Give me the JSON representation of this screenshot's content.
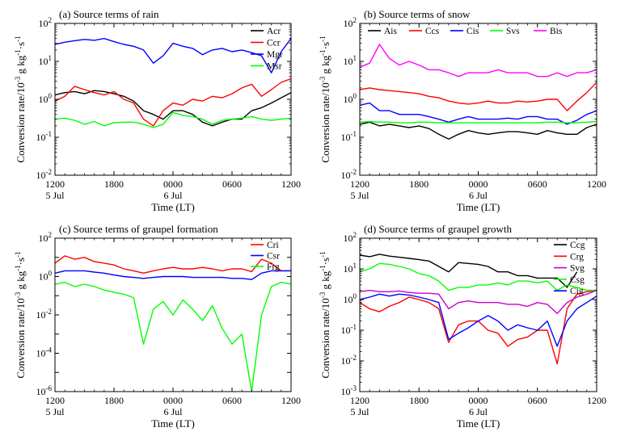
{
  "figure": {
    "ylabel_main": "Conversion rate/10",
    "ylabel_exp": "-3",
    "ylabel_unit": " g kg",
    "ylabel_unit_exp": "-1",
    "ylabel_sep": "·s",
    "ylabel_sep_exp": "-1",
    "xlabel": "Time (LT)"
  },
  "chart_data": [
    {
      "type": "line",
      "title": "(a)  Source terms of rain",
      "xlabel": "Time (LT)",
      "ylabel": "Conversion rate/10^-3 g kg^-1·s^-1",
      "yscale": "log",
      "ylim_exp": [
        -2,
        2
      ],
      "ytick_exps": [
        -2,
        -1,
        0,
        1,
        2
      ],
      "xlim_hours": [
        0,
        24
      ],
      "xticks": [
        {
          "h": 0,
          "label": "1200",
          "sub": "5 Jul"
        },
        {
          "h": 6,
          "label": "1800",
          "sub": ""
        },
        {
          "h": 12,
          "label": "0000",
          "sub": "6 Jul"
        },
        {
          "h": 18,
          "label": "0600",
          "sub": ""
        },
        {
          "h": 24,
          "label": "1200",
          "sub": ""
        }
      ],
      "legend_position": "top-right",
      "series": [
        {
          "name": "Acr",
          "color": "#000000",
          "x": [
            0,
            1,
            2,
            3,
            4,
            5,
            6,
            7,
            8,
            9,
            10,
            11,
            12,
            13,
            14,
            15,
            16,
            17,
            18,
            19,
            20,
            21,
            22,
            23,
            24
          ],
          "y": [
            1.3,
            1.5,
            1.6,
            1.4,
            1.7,
            1.6,
            1.4,
            1.2,
            0.9,
            0.5,
            0.4,
            0.3,
            0.5,
            0.5,
            0.4,
            0.25,
            0.2,
            0.25,
            0.3,
            0.3,
            0.5,
            0.6,
            0.8,
            1.1,
            1.5
          ]
        },
        {
          "name": "Ccr",
          "color": "#ff0000",
          "x": [
            0,
            1,
            2,
            3,
            4,
            5,
            6,
            7,
            8,
            9,
            10,
            11,
            12,
            13,
            14,
            15,
            16,
            17,
            18,
            19,
            20,
            21,
            22,
            23,
            24
          ],
          "y": [
            0.9,
            1.2,
            2.2,
            1.8,
            1.5,
            1.3,
            1.6,
            1.0,
            0.8,
            0.3,
            0.2,
            0.5,
            0.8,
            0.7,
            1.0,
            0.9,
            1.2,
            1.1,
            1.4,
            2.0,
            2.5,
            1.2,
            1.8,
            2.8,
            3.5
          ]
        },
        {
          "name": "Mgr",
          "color": "#0000ff",
          "x": [
            0,
            1,
            2,
            3,
            4,
            5,
            6,
            7,
            8,
            9,
            10,
            11,
            12,
            13,
            14,
            15,
            16,
            17,
            18,
            19,
            20,
            21,
            22,
            23,
            24
          ],
          "y": [
            28,
            32,
            35,
            38,
            36,
            40,
            33,
            28,
            25,
            20,
            9,
            14,
            30,
            25,
            22,
            15,
            20,
            22,
            18,
            20,
            17,
            14,
            5,
            18,
            40
          ]
        },
        {
          "name": "Msr",
          "color": "#00ff00",
          "x": [
            0,
            1,
            2,
            3,
            4,
            5,
            6,
            7,
            8,
            9,
            10,
            11,
            12,
            13,
            14,
            15,
            16,
            17,
            18,
            19,
            20,
            21,
            22,
            23,
            24
          ],
          "y": [
            0.3,
            0.32,
            0.28,
            0.22,
            0.26,
            0.2,
            0.24,
            0.25,
            0.25,
            0.22,
            0.18,
            0.22,
            0.45,
            0.38,
            0.35,
            0.3,
            0.22,
            0.28,
            0.3,
            0.32,
            0.35,
            0.3,
            0.28,
            0.3,
            0.32
          ]
        }
      ]
    },
    {
      "type": "line",
      "title": "(b)  Source terms of snow",
      "xlabel": "Time (LT)",
      "ylabel": "Conversion rate/10^-3 g kg^-1·s^-1",
      "yscale": "log",
      "ylim_exp": [
        -2,
        2
      ],
      "ytick_exps": [
        -2,
        -1,
        0,
        1,
        2
      ],
      "xlim_hours": [
        0,
        24
      ],
      "xticks": [
        {
          "h": 0,
          "label": "1200",
          "sub": "5 Jul"
        },
        {
          "h": 6,
          "label": "1800",
          "sub": ""
        },
        {
          "h": 12,
          "label": "0000",
          "sub": "6 Jul"
        },
        {
          "h": 18,
          "label": "0600",
          "sub": ""
        },
        {
          "h": 24,
          "label": "1200",
          "sub": ""
        }
      ],
      "legend_position": "top",
      "series": [
        {
          "name": "Ais",
          "color": "#000000",
          "x": [
            0,
            1,
            2,
            3,
            4,
            5,
            6,
            7,
            8,
            9,
            10,
            11,
            12,
            13,
            14,
            15,
            16,
            17,
            18,
            19,
            20,
            21,
            22,
            23,
            24
          ],
          "y": [
            0.22,
            0.25,
            0.2,
            0.22,
            0.2,
            0.18,
            0.2,
            0.17,
            0.12,
            0.09,
            0.12,
            0.15,
            0.13,
            0.12,
            0.13,
            0.14,
            0.14,
            0.13,
            0.12,
            0.15,
            0.13,
            0.12,
            0.12,
            0.18,
            0.22
          ]
        },
        {
          "name": "Ccs",
          "color": "#ff0000",
          "x": [
            0,
            1,
            2,
            3,
            4,
            5,
            6,
            7,
            8,
            9,
            10,
            11,
            12,
            13,
            14,
            15,
            16,
            17,
            18,
            19,
            20,
            21,
            22,
            23,
            24
          ],
          "y": [
            1.8,
            2.0,
            1.8,
            1.7,
            1.6,
            1.5,
            1.4,
            1.2,
            1.1,
            0.9,
            0.8,
            0.75,
            0.8,
            0.9,
            0.8,
            0.8,
            0.9,
            0.85,
            0.9,
            1.0,
            1.0,
            0.5,
            0.9,
            1.5,
            2.8
          ]
        },
        {
          "name": "Cis",
          "color": "#0000ff",
          "x": [
            0,
            1,
            2,
            3,
            4,
            5,
            6,
            7,
            8,
            9,
            10,
            11,
            12,
            13,
            14,
            15,
            16,
            17,
            18,
            19,
            20,
            21,
            22,
            23,
            24
          ],
          "y": [
            0.7,
            0.8,
            0.5,
            0.5,
            0.4,
            0.4,
            0.4,
            0.35,
            0.3,
            0.25,
            0.3,
            0.35,
            0.3,
            0.3,
            0.3,
            0.32,
            0.3,
            0.35,
            0.35,
            0.3,
            0.3,
            0.22,
            0.28,
            0.4,
            0.5
          ]
        },
        {
          "name": "Svs",
          "color": "#00ff00",
          "x": [
            0,
            1,
            2,
            3,
            4,
            5,
            6,
            7,
            8,
            9,
            10,
            11,
            12,
            13,
            14,
            15,
            16,
            17,
            18,
            19,
            20,
            21,
            22,
            23,
            24
          ],
          "y": [
            0.25,
            0.26,
            0.25,
            0.25,
            0.24,
            0.24,
            0.25,
            0.25,
            0.24,
            0.24,
            0.24,
            0.24,
            0.24,
            0.24,
            0.24,
            0.24,
            0.24,
            0.24,
            0.24,
            0.25,
            0.25,
            0.24,
            0.24,
            0.25,
            0.26
          ]
        },
        {
          "name": "Bis",
          "color": "#ff00ff",
          "x": [
            0,
            1,
            2,
            3,
            4,
            5,
            6,
            7,
            8,
            9,
            10,
            11,
            12,
            13,
            14,
            15,
            16,
            17,
            18,
            19,
            20,
            21,
            22,
            23,
            24
          ],
          "y": [
            7,
            9,
            28,
            12,
            8,
            10,
            8,
            6,
            6,
            5,
            4,
            5,
            5,
            5,
            6,
            5,
            5,
            5,
            4,
            4,
            5,
            4,
            5,
            5,
            6
          ]
        }
      ]
    },
    {
      "type": "line",
      "title": "(c)  Source terms of graupel formation",
      "xlabel": "Time (LT)",
      "ylabel": "Conversion rate/10^-3 g kg^-1·s^-1",
      "yscale": "log",
      "ylim_exp": [
        -6,
        2
      ],
      "ytick_exps": [
        -6,
        -4,
        -2,
        0,
        2
      ],
      "xlim_hours": [
        0,
        24
      ],
      "xticks": [
        {
          "h": 0,
          "label": "1200",
          "sub": "5 Jul"
        },
        {
          "h": 6,
          "label": "1800",
          "sub": ""
        },
        {
          "h": 12,
          "label": "0000",
          "sub": "6 Jul"
        },
        {
          "h": 18,
          "label": "0600",
          "sub": ""
        },
        {
          "h": 24,
          "label": "1200",
          "sub": ""
        }
      ],
      "legend_position": "top-right",
      "series": [
        {
          "name": "Cri",
          "color": "#ff0000",
          "x": [
            0,
            1,
            2,
            3,
            4,
            5,
            6,
            7,
            8,
            9,
            10,
            11,
            12,
            13,
            14,
            15,
            16,
            17,
            18,
            19,
            20,
            21,
            22,
            23,
            24
          ],
          "y": [
            5,
            12,
            8,
            10,
            6,
            5,
            4,
            2.5,
            2,
            1.5,
            2,
            2.5,
            3,
            2.5,
            2.5,
            3,
            2.5,
            2,
            2.5,
            2.5,
            1.8,
            8,
            5,
            2,
            2
          ]
        },
        {
          "name": "Csr",
          "color": "#0000ff",
          "x": [
            0,
            1,
            2,
            3,
            4,
            5,
            6,
            7,
            8,
            9,
            10,
            11,
            12,
            13,
            14,
            15,
            16,
            17,
            18,
            19,
            20,
            21,
            22,
            23,
            24
          ],
          "y": [
            1.5,
            2,
            2,
            2,
            1.7,
            1.5,
            1.2,
            1.0,
            0.9,
            0.8,
            0.9,
            1.0,
            1.0,
            1.0,
            0.9,
            0.9,
            0.9,
            0.9,
            0.8,
            0.8,
            0.7,
            1.5,
            2,
            2,
            2
          ]
        },
        {
          "name": "Frg",
          "color": "#00ff00",
          "x": [
            0,
            1,
            2,
            3,
            4,
            5,
            6,
            7,
            8,
            9,
            10,
            11,
            12,
            13,
            14,
            15,
            16,
            17,
            18,
            19,
            20,
            21,
            22,
            23,
            24
          ],
          "y": [
            0.4,
            0.5,
            0.3,
            0.4,
            0.3,
            0.2,
            0.15,
            0.12,
            0.08,
            0.0003,
            0.02,
            0.05,
            0.01,
            0.06,
            0.02,
            0.005,
            0.03,
            0.002,
            0.0003,
            0.001,
            1e-06,
            0.01,
            0.3,
            0.5,
            0.4
          ]
        }
      ]
    },
    {
      "type": "line",
      "title": "(d)  Source terms of graupel growth",
      "xlabel": "Time (LT)",
      "ylabel": "Conversion rate/10^-3 g kg^-1·s^-1",
      "yscale": "log",
      "ylim_exp": [
        -3,
        2
      ],
      "ytick_exps": [
        -3,
        -2,
        -1,
        0,
        1,
        2
      ],
      "xlim_hours": [
        0,
        24
      ],
      "xticks": [
        {
          "h": 0,
          "label": "1200",
          "sub": "5 Jul"
        },
        {
          "h": 6,
          "label": "1800",
          "sub": ""
        },
        {
          "h": 12,
          "label": "0000",
          "sub": "6 Jul"
        },
        {
          "h": 18,
          "label": "0600",
          "sub": ""
        },
        {
          "h": 24,
          "label": "1200",
          "sub": ""
        }
      ],
      "legend_position": "top-right",
      "series": [
        {
          "name": "Ccg",
          "color": "#000000",
          "x": [
            0,
            1,
            2,
            3,
            4,
            5,
            6,
            7,
            8,
            9,
            10,
            11,
            12,
            13,
            14,
            15,
            16,
            17,
            18,
            19,
            20,
            21,
            22,
            23,
            24
          ],
          "y": [
            28,
            25,
            30,
            26,
            24,
            22,
            20,
            18,
            12,
            8,
            16,
            15,
            14,
            12,
            8,
            8,
            6,
            6,
            5,
            5,
            5,
            2.5,
            8,
            null,
            null
          ]
        },
        {
          "name": "Crg",
          "color": "#ff0000",
          "x": [
            0,
            1,
            2,
            3,
            4,
            5,
            6,
            7,
            8,
            9,
            10,
            11,
            12,
            13,
            14,
            15,
            16,
            17,
            18,
            19,
            20,
            21,
            22,
            23,
            24
          ],
          "y": [
            0.8,
            0.5,
            0.4,
            0.6,
            0.8,
            1.2,
            1.0,
            0.8,
            0.5,
            0.04,
            0.15,
            0.2,
            0.2,
            0.1,
            0.08,
            0.03,
            0.05,
            0.06,
            0.1,
            0.1,
            0.008,
            0.5,
            1.5,
            1.8,
            2
          ]
        },
        {
          "name": "Svg",
          "color": "#cc00cc",
          "x": [
            0,
            1,
            2,
            3,
            4,
            5,
            6,
            7,
            8,
            9,
            10,
            11,
            12,
            13,
            14,
            15,
            16,
            17,
            18,
            19,
            20,
            21,
            22,
            23,
            24
          ],
          "y": [
            1.8,
            2,
            1.8,
            1.8,
            1.9,
            1.7,
            1.6,
            1.6,
            1.5,
            0.5,
            0.8,
            0.9,
            0.8,
            0.8,
            0.8,
            0.7,
            0.7,
            0.6,
            0.8,
            0.7,
            0.35,
            0.8,
            1.2,
            1.5,
            2
          ]
        },
        {
          "name": "Csg",
          "color": "#00ff00",
          "x": [
            0,
            1,
            2,
            3,
            4,
            5,
            6,
            7,
            8,
            9,
            10,
            11,
            12,
            13,
            14,
            15,
            16,
            17,
            18,
            19,
            20,
            21,
            22,
            23,
            24
          ],
          "y": [
            8,
            10,
            15,
            14,
            12,
            10,
            7,
            6,
            4,
            2,
            2.5,
            2.5,
            3,
            3,
            3.5,
            3,
            4,
            4,
            3.5,
            4,
            2,
            3,
            2.5,
            2,
            2
          ]
        },
        {
          "name": "Cig",
          "color": "#0000ff",
          "x": [
            0,
            1,
            2,
            3,
            4,
            5,
            6,
            7,
            8,
            9,
            10,
            11,
            12,
            13,
            14,
            15,
            16,
            17,
            18,
            19,
            20,
            21,
            22,
            23,
            24
          ],
          "y": [
            1.0,
            1.2,
            1.5,
            1.3,
            1.5,
            1.4,
            1.2,
            1.0,
            0.8,
            0.05,
            0.08,
            0.12,
            0.2,
            0.3,
            0.2,
            0.1,
            0.15,
            0.12,
            0.1,
            0.2,
            0.03,
            0.2,
            0.5,
            0.8,
            1.3
          ]
        }
      ]
    }
  ]
}
